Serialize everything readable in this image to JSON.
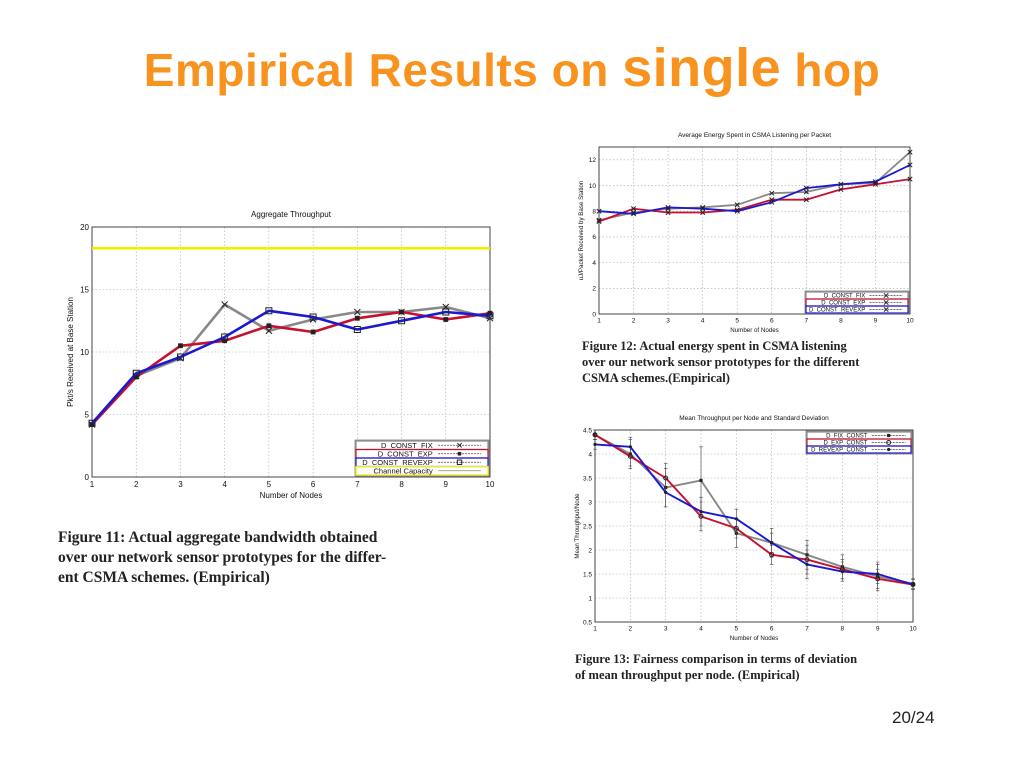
{
  "slide": {
    "title_pre": "Empirical Results on ",
    "title_big": "single",
    "title_post": " hop",
    "page_number": "20/24"
  },
  "captions": {
    "fig11": [
      "Figure 11:  Actual aggregate bandwidth obtained",
      "over our network sensor prototypes for the differ-",
      "ent CSMA schemes. (Empirical)"
    ],
    "fig12": [
      "Figure 12:  Actual energy spent in CSMA listening",
      "over our network sensor prototypes for the different",
      "CSMA schemes.(Empirical)"
    ],
    "fig13": [
      "Figure 13: Fairness comparison in terms of deviation",
      "of mean throughput per node. (Empirical)"
    ]
  },
  "chart_data": [
    {
      "id": "fig11",
      "type": "line",
      "title": "Aggregate Throughput",
      "xlabel": "Number of Nodes",
      "ylabel": "Pkt/s Received at Base Station",
      "x": [
        1,
        2,
        3,
        4,
        5,
        6,
        7,
        8,
        9,
        10
      ],
      "xlim": [
        1,
        10
      ],
      "ylim": [
        0,
        20
      ],
      "xticks": [
        1,
        2,
        3,
        4,
        5,
        6,
        7,
        8,
        9,
        10
      ],
      "yticks": [
        0,
        5,
        10,
        15,
        20
      ],
      "grid": true,
      "legend_position": "bottom-right",
      "series": [
        {
          "name": "D_CONST_FIX",
          "color": "#888888",
          "marker": "x",
          "values": [
            4.2,
            8.1,
            9.5,
            13.8,
            11.7,
            12.6,
            13.2,
            13.2,
            13.6,
            12.7
          ]
        },
        {
          "name": "D_CONST_EXP",
          "color": "#c8102e",
          "marker": "square",
          "values": [
            4.2,
            8.0,
            10.5,
            10.9,
            12.1,
            11.6,
            12.7,
            13.2,
            12.6,
            13.1
          ]
        },
        {
          "name": "D_CONST_REVEXP",
          "color": "#1a1ad0",
          "marker": "square-open",
          "values": [
            4.3,
            8.3,
            9.6,
            11.2,
            13.3,
            12.8,
            11.8,
            12.5,
            13.2,
            12.9
          ]
        },
        {
          "name": "Channel Capacity",
          "color": "#f0f000",
          "marker": "none",
          "values": [
            18.3,
            18.3,
            18.3,
            18.3,
            18.3,
            18.3,
            18.3,
            18.3,
            18.3,
            18.3
          ]
        }
      ]
    },
    {
      "id": "fig12",
      "type": "line",
      "title": "Average Energy Spent in CSMA Listening per Packet",
      "xlabel": "Number of Nodes",
      "ylabel": "uJ/Packet Received by Base Station",
      "x": [
        1,
        2,
        3,
        4,
        5,
        6,
        7,
        8,
        9,
        10
      ],
      "xlim": [
        1,
        10
      ],
      "ylim": [
        0,
        13
      ],
      "xticks": [
        1,
        2,
        3,
        4,
        5,
        6,
        7,
        8,
        9,
        10
      ],
      "yticks": [
        0,
        2,
        4,
        6,
        8,
        10,
        12
      ],
      "grid": true,
      "legend_position": "bottom-right",
      "series": [
        {
          "name": "D_CONST_FIX",
          "color": "#888888",
          "marker": "x",
          "values": [
            7.3,
            7.9,
            8.2,
            8.3,
            8.5,
            9.4,
            9.5,
            10.1,
            10.2,
            12.6
          ]
        },
        {
          "name": "D_CONST_EXP",
          "color": "#c8102e",
          "marker": "x",
          "values": [
            7.2,
            8.2,
            7.9,
            7.9,
            8.1,
            8.9,
            8.9,
            9.7,
            10.1,
            10.5
          ]
        },
        {
          "name": "D_CONST_REVEXP",
          "color": "#1a1ad0",
          "marker": "x",
          "values": [
            8.0,
            7.8,
            8.3,
            8.2,
            8.0,
            8.7,
            9.8,
            10.1,
            10.3,
            11.6
          ]
        }
      ]
    },
    {
      "id": "fig13",
      "type": "line",
      "title": "Mean Throughput per Node and Standard Deviation",
      "xlabel": "Number of Nodes",
      "ylabel": "Mean Throughput/Node",
      "x": [
        1,
        2,
        3,
        4,
        5,
        6,
        7,
        8,
        9,
        10
      ],
      "xlim": [
        1,
        10
      ],
      "ylim": [
        0.5,
        4.5
      ],
      "xticks": [
        1,
        2,
        3,
        4,
        5,
        6,
        7,
        8,
        9,
        10
      ],
      "yticks": [
        0.5,
        1,
        1.5,
        2,
        2.5,
        3,
        3.5,
        4,
        4.5
      ],
      "grid": true,
      "error_bars": true,
      "legend_position": "top-right",
      "series": [
        {
          "name": "D_FIX_CONST",
          "color": "#888888",
          "marker": "square",
          "values": [
            4.4,
            4.0,
            3.3,
            3.45,
            2.35,
            2.15,
            1.9,
            1.65,
            1.45,
            1.3
          ],
          "errors": [
            0.1,
            0.3,
            0.4,
            0.7,
            0.3,
            0.3,
            0.3,
            0.25,
            0.3,
            0.1
          ]
        },
        {
          "name": "D_EXP_CONST",
          "color": "#c8102e",
          "marker": "circle-open",
          "values": [
            4.4,
            3.95,
            3.5,
            2.7,
            2.45,
            1.9,
            1.8,
            1.6,
            1.4,
            1.28
          ],
          "errors": [
            0.1,
            0.2,
            0.3,
            0.3,
            0.2,
            0.2,
            0.3,
            0.2,
            0.2,
            0.1
          ]
        },
        {
          "name": "D_REVEXP_CONST",
          "color": "#1a1ad0",
          "marker": "dot",
          "values": [
            4.2,
            4.15,
            3.2,
            2.8,
            2.65,
            2.15,
            1.7,
            1.55,
            1.5,
            1.28
          ],
          "errors": [
            0.1,
            0.2,
            0.3,
            0.3,
            0.2,
            0.2,
            0.3,
            0.2,
            0.2,
            0.1
          ]
        }
      ]
    }
  ]
}
